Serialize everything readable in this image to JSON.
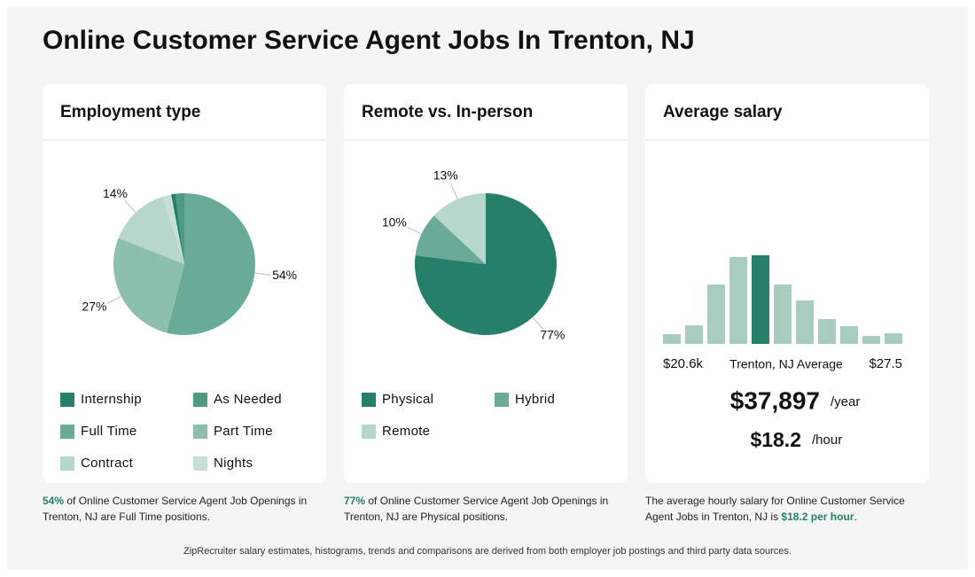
{
  "title": "Online Customer Service Agent Jobs In Trenton, NJ",
  "footer": "ZipRecruiter salary estimates, histograms, trends and comparisons are derived from both employer job postings and third party data sources.",
  "chart_data": [
    {
      "type": "pie",
      "title": "Employment type",
      "categories": [
        "Internship",
        "As Needed",
        "Full Time",
        "Part Time",
        "Contract",
        "Nights"
      ],
      "values": [
        1,
        2,
        54,
        27,
        14,
        2
      ],
      "value_labels": [
        null,
        null,
        "54%",
        "27%",
        "14%",
        null
      ],
      "colors": [
        "#267f68",
        "#4f9a83",
        "#6aab98",
        "#8dbfae",
        "#b7d7cc",
        "#c6e0d7"
      ],
      "caption": [
        {
          "text": "54%",
          "bold": true
        },
        {
          "text": " of Online Customer Service Agent Job Openings in Trenton, NJ are Full Time positions.",
          "bold": false
        }
      ]
    },
    {
      "type": "pie",
      "title": "Remote vs. In-person",
      "categories": [
        "Physical",
        "Hybrid",
        "Remote"
      ],
      "values": [
        77,
        10,
        13
      ],
      "value_labels": [
        "77%",
        "10%",
        "13%"
      ],
      "colors": [
        "#267f68",
        "#6aab98",
        "#b7d7cc"
      ],
      "caption": [
        {
          "text": "77%",
          "bold": true
        },
        {
          "text": " of Online Customer Service Agent Job Openings in Trenton, NJ are Physical positions.",
          "bold": false
        }
      ]
    },
    {
      "type": "histogram",
      "title": "Average salary",
      "values": [
        11,
        21,
        67,
        98,
        100,
        67,
        49,
        28,
        20,
        9,
        12
      ],
      "ylim": [
        0,
        100
      ],
      "color": "#a8cdc0",
      "highlight_color": "#267f68",
      "highlight_index": 4,
      "x_labels": [
        "$20.6k",
        "Trenton, NJ Average",
        "$27.5"
      ],
      "salary_year": "$37,897",
      "per_year": "/year",
      "salary_hour": "$18.2",
      "per_hour": "/hour",
      "caption": [
        {
          "text": "The average hourly salary for Online Customer Service Agent Jobs in Trenton, NJ is ",
          "bold": false
        },
        {
          "text": "$18.2 per hour",
          "bold": true
        },
        {
          "text": ".",
          "bold": false
        }
      ]
    }
  ]
}
